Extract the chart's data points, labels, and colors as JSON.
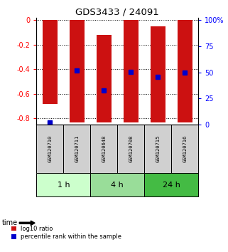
{
  "title": "GDS3433 / 24091",
  "samples": [
    "GSM120710",
    "GSM120711",
    "GSM120648",
    "GSM120708",
    "GSM120715",
    "GSM120716"
  ],
  "groups": [
    {
      "label": "1 h",
      "indices": [
        0,
        1
      ],
      "color": "#ccffcc"
    },
    {
      "label": "4 h",
      "indices": [
        2,
        3
      ],
      "color": "#99dd99"
    },
    {
      "label": "24 h",
      "indices": [
        4,
        5
      ],
      "color": "#44bb44"
    }
  ],
  "log10_ratio_bottom": [
    -0.68,
    -0.83,
    -0.83,
    -0.83,
    -0.83,
    -0.83
  ],
  "log10_ratio_top": [
    0.0,
    0.0,
    -0.12,
    0.0,
    -0.05,
    0.0
  ],
  "percentile_rank": [
    -0.83,
    -0.41,
    -0.57,
    -0.42,
    -0.46,
    -0.43
  ],
  "ylim": [
    -0.85,
    0.02
  ],
  "yticks_left": [
    0,
    -0.2,
    -0.4,
    -0.6,
    -0.8
  ],
  "yticks_right": [
    100,
    75,
    50,
    25,
    0
  ],
  "bar_color": "#cc1111",
  "dot_color": "#0000cc",
  "bar_width": 0.55,
  "dot_size": 4,
  "label_panel_bg": "#d0d0d0",
  "legend_items": [
    "log10 ratio",
    "percentile rank within the sample"
  ]
}
